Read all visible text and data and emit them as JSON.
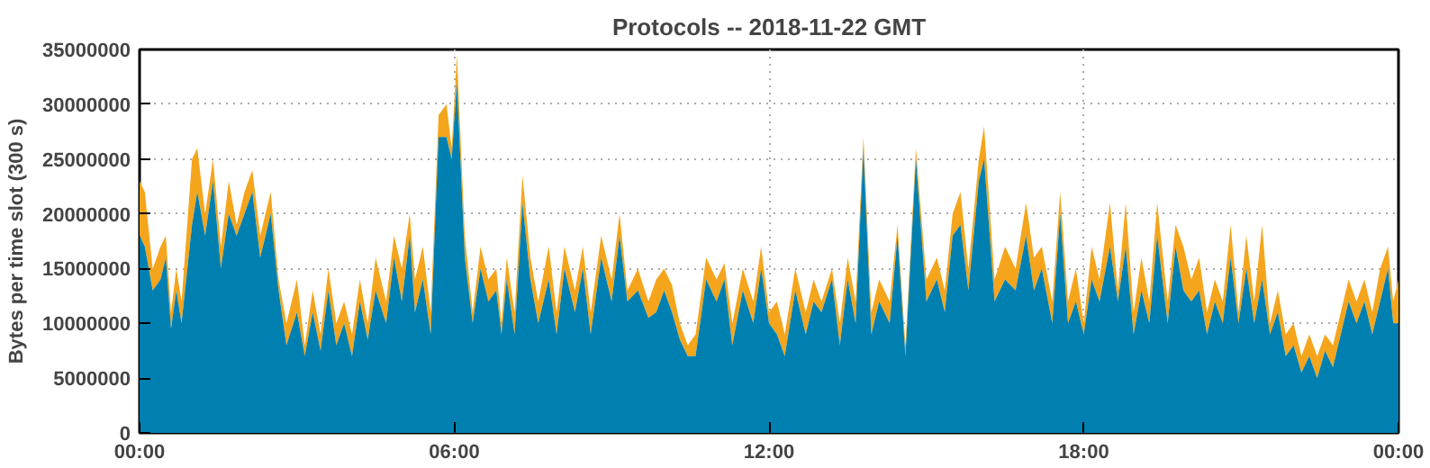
{
  "chart_data": {
    "type": "area",
    "stacked": true,
    "title": "Protocols -- 2018-11-22 GMT",
    "ylabel": "Bytes per time slot (300 s)",
    "x": [
      0.0,
      0.1,
      0.25,
      0.4,
      0.5,
      0.6,
      0.7,
      0.8,
      1.0,
      1.1,
      1.25,
      1.4,
      1.55,
      1.7,
      1.85,
      2.0,
      2.15,
      2.3,
      2.5,
      2.65,
      2.8,
      3.0,
      3.15,
      3.3,
      3.45,
      3.6,
      3.75,
      3.9,
      4.05,
      4.2,
      4.35,
      4.5,
      4.7,
      4.85,
      5.0,
      5.15,
      5.25,
      5.4,
      5.55,
      5.7,
      5.85,
      5.95,
      6.05,
      6.2,
      6.35,
      6.5,
      6.65,
      6.8,
      6.9,
      7.0,
      7.15,
      7.3,
      7.45,
      7.6,
      7.8,
      7.95,
      8.1,
      8.3,
      8.45,
      8.6,
      8.8,
      9.0,
      9.15,
      9.3,
      9.5,
      9.7,
      9.85,
      10.0,
      10.15,
      10.3,
      10.45,
      10.6,
      10.8,
      11.0,
      11.15,
      11.3,
      11.5,
      11.7,
      11.85,
      12.0,
      12.15,
      12.3,
      12.5,
      12.7,
      12.85,
      13.0,
      13.2,
      13.35,
      13.5,
      13.65,
      13.8,
      13.95,
      14.1,
      14.3,
      14.45,
      14.6,
      14.8,
      15.0,
      15.2,
      15.35,
      15.5,
      15.65,
      15.8,
      16.0,
      16.1,
      16.3,
      16.5,
      16.7,
      16.9,
      17.05,
      17.2,
      17.4,
      17.55,
      17.7,
      17.85,
      18.0,
      18.15,
      18.3,
      18.5,
      18.65,
      18.8,
      18.95,
      19.1,
      19.25,
      19.4,
      19.6,
      19.75,
      19.9,
      20.05,
      20.2,
      20.35,
      20.5,
      20.65,
      20.8,
      20.95,
      21.1,
      21.25,
      21.4,
      21.55,
      21.7,
      21.85,
      22.0,
      22.15,
      22.3,
      22.45,
      22.6,
      22.75,
      22.9,
      23.05,
      23.2,
      23.35,
      23.5,
      23.65,
      23.8,
      23.9,
      24.0
    ],
    "series": [
      {
        "color": "#0080b0",
        "values": [
          18000000,
          17000000,
          13000000,
          14000000,
          16000000,
          9500000,
          13000000,
          10000000,
          19000000,
          22000000,
          18000000,
          23000000,
          15000000,
          20000000,
          18000000,
          20000000,
          22000000,
          16000000,
          20000000,
          13000000,
          8000000,
          11000000,
          7000000,
          11000000,
          7500000,
          13000000,
          8000000,
          10000000,
          7000000,
          12000000,
          8500000,
          13000000,
          10000000,
          16000000,
          12000000,
          18000000,
          11000000,
          14000000,
          9000000,
          27000000,
          27000000,
          25000000,
          32000000,
          16000000,
          10000000,
          15000000,
          12000000,
          13000000,
          9000000,
          14000000,
          9000000,
          21000000,
          14000000,
          10000000,
          14000000,
          9000000,
          15000000,
          11000000,
          15000000,
          9000000,
          16000000,
          12000000,
          18000000,
          12000000,
          13000000,
          10500000,
          11000000,
          13000000,
          11000000,
          8500000,
          7000000,
          7000000,
          14000000,
          12000000,
          14000000,
          8000000,
          13000000,
          10000000,
          15000000,
          10000000,
          9000000,
          7000000,
          13000000,
          9000000,
          12000000,
          11000000,
          14000000,
          8000000,
          14000000,
          10000000,
          26000000,
          9000000,
          12000000,
          10000000,
          18000000,
          7000000,
          25000000,
          12000000,
          14000000,
          11000000,
          18000000,
          19000000,
          13000000,
          23000000,
          25000000,
          12000000,
          14000000,
          13000000,
          18000000,
          13000000,
          15000000,
          10000000,
          20000000,
          10000000,
          12000000,
          9000000,
          14000000,
          12000000,
          17000000,
          12000000,
          17000000,
          9000000,
          13000000,
          10000000,
          18000000,
          10000000,
          17000000,
          13000000,
          12000000,
          13000000,
          9000000,
          12000000,
          10000000,
          16000000,
          10000000,
          15000000,
          10000000,
          14000000,
          9000000,
          11000000,
          7000000,
          8000000,
          5500000,
          7000000,
          5000000,
          7500000,
          6000000,
          9000000,
          12000000,
          10000000,
          12000000,
          9000000,
          12000000,
          15000000,
          10000000,
          10000000
        ]
      },
      {
        "color": "#f5a51c",
        "values": [
          5000000,
          5000000,
          2000000,
          3000000,
          2000000,
          1500000,
          2000000,
          2000000,
          6000000,
          4000000,
          2000000,
          2000000,
          2000000,
          3000000,
          1000000,
          2000000,
          2000000,
          2000000,
          2000000,
          1000000,
          2000000,
          3000000,
          1000000,
          2000000,
          1500000,
          2000000,
          2000000,
          2000000,
          2000000,
          2000000,
          1500000,
          3000000,
          2000000,
          2000000,
          3000000,
          2000000,
          3000000,
          3000000,
          2000000,
          2000000,
          3000000,
          1000000,
          2500000,
          2000000,
          1000000,
          2000000,
          2000000,
          2000000,
          1000000,
          2000000,
          2000000,
          2500000,
          2000000,
          2000000,
          3000000,
          2000000,
          2000000,
          2000000,
          2000000,
          2000000,
          2000000,
          2000000,
          2000000,
          1000000,
          2000000,
          1500000,
          3000000,
          2000000,
          2500000,
          1500000,
          1000000,
          2000000,
          2000000,
          2000000,
          1500000,
          2000000,
          2000000,
          2000000,
          2000000,
          1000000,
          3000000,
          2000000,
          2000000,
          2000000,
          2000000,
          1000000,
          1000000,
          2000000,
          2000000,
          2000000,
          1000000,
          2000000,
          2000000,
          2000000,
          1000000,
          1000000,
          1000000,
          2000000,
          2000000,
          2000000,
          2000000,
          3000000,
          2000000,
          2000000,
          3000000,
          2000000,
          3000000,
          2000000,
          3000000,
          3000000,
          2000000,
          2000000,
          2000000,
          2000000,
          3000000,
          1000000,
          3000000,
          2000000,
          4000000,
          1000000,
          4000000,
          2000000,
          3000000,
          2000000,
          3000000,
          2000000,
          2000000,
          4000000,
          2000000,
          3000000,
          2000000,
          2000000,
          2000000,
          3000000,
          1000000,
          3000000,
          2000000,
          5000000,
          1000000,
          2000000,
          2000000,
          2000000,
          1500000,
          2000000,
          2000000,
          1500000,
          2000000,
          2000000,
          2000000,
          2000000,
          2000000,
          2000000,
          3000000,
          2000000,
          2000000,
          4000000
        ]
      }
    ],
    "xlim": [
      0,
      24
    ],
    "xticks": [
      {
        "value": 0,
        "label": "00:00"
      },
      {
        "value": 6,
        "label": "06:00"
      },
      {
        "value": 12,
        "label": "12:00"
      },
      {
        "value": 18,
        "label": "18:00"
      },
      {
        "value": 24,
        "label": "00:00"
      }
    ],
    "ylim": [
      0,
      35000000
    ],
    "yticks": [
      0,
      5000000,
      10000000,
      15000000,
      20000000,
      25000000,
      30000000,
      35000000
    ],
    "grid": true
  }
}
